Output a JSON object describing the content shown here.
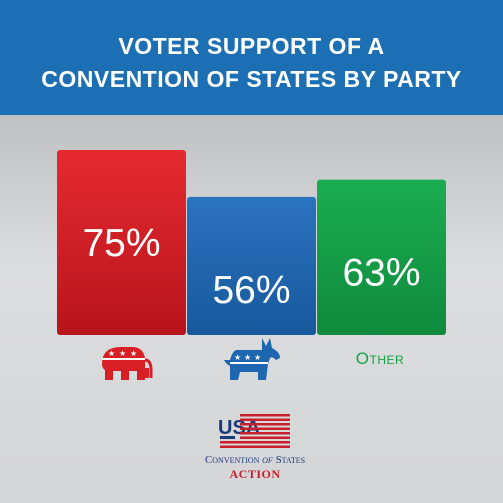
{
  "header": {
    "title_line1": "VOTER SUPPORT OF A",
    "title_line2": "CONVENTION OF STATES BY PARTY"
  },
  "colors": {
    "header_bg": "#1c6fb3",
    "republican": "#d81f26",
    "democrat": "#1f66b1",
    "other": "#17a24a"
  },
  "chart_data": {
    "type": "bar",
    "categories": [
      "Republican",
      "Democrat",
      "Other"
    ],
    "values": [
      75,
      56,
      63
    ],
    "labels": [
      "75%",
      "56%",
      "63%"
    ],
    "title": "VOTER SUPPORT OF A CONVENTION OF STATES BY PARTY",
    "xlabel": "",
    "ylabel": "",
    "ylim": [
      0,
      100
    ],
    "grid": false
  },
  "categories_display": {
    "republican_icon": "elephant-icon",
    "democrat_icon": "donkey-icon",
    "other_label": "Other"
  },
  "logo": {
    "usa": "USA",
    "name_part1": "Convention",
    "name_of": "of",
    "name_part2": "States",
    "action": "ACTION"
  }
}
